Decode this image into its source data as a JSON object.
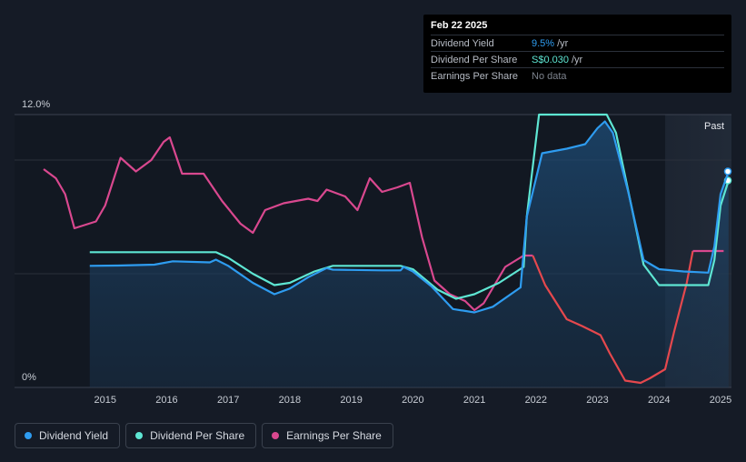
{
  "tooltip": {
    "date": "Feb 22 2025",
    "rows": [
      {
        "label": "Dividend Yield",
        "value": "9.5%",
        "unit": "/yr",
        "color": "#2e9cf0"
      },
      {
        "label": "Dividend Per Share",
        "value": "S$0.030",
        "unit": "/yr",
        "color": "#5ee6d3"
      },
      {
        "label": "Earnings Per Share",
        "value": "No data",
        "unit": "",
        "color": "#8a9099"
      }
    ]
  },
  "past_label": "Past",
  "legend": [
    {
      "label": "Dividend Yield",
      "color": "#2e9cf0"
    },
    {
      "label": "Dividend Per Share",
      "color": "#5ee6d3"
    },
    {
      "label": "Earnings Per Share",
      "color": "#d9488f"
    }
  ],
  "chart_data": {
    "type": "line",
    "y_ticks": [
      {
        "value": 12,
        "label": "12.0%"
      },
      {
        "value": 0,
        "label": "0%"
      }
    ],
    "ylim": [
      0,
      12
    ],
    "xlim": [
      2014.0,
      2025.15
    ],
    "x_ticks": [
      "2015",
      "2016",
      "2017",
      "2018",
      "2019",
      "2020",
      "2021",
      "2022",
      "2023",
      "2024",
      "2025"
    ],
    "grid": true,
    "forecast_region_start": 2024.1,
    "series": [
      {
        "name": "Dividend Yield",
        "color": "#2e9cf0",
        "area": true,
        "points": [
          [
            2014.75,
            5.35
          ],
          [
            2015.2,
            5.36
          ],
          [
            2015.8,
            5.4
          ],
          [
            2016.1,
            5.55
          ],
          [
            2016.7,
            5.5
          ],
          [
            2016.8,
            5.62
          ],
          [
            2017.0,
            5.35
          ],
          [
            2017.4,
            4.6
          ],
          [
            2017.75,
            4.1
          ],
          [
            2018.0,
            4.35
          ],
          [
            2018.3,
            4.85
          ],
          [
            2018.6,
            5.25
          ],
          [
            2018.7,
            5.18
          ],
          [
            2019.0,
            5.17
          ],
          [
            2019.5,
            5.15
          ],
          [
            2019.8,
            5.15
          ],
          [
            2019.85,
            5.3
          ],
          [
            2020.0,
            5.1
          ],
          [
            2020.3,
            4.45
          ],
          [
            2020.65,
            3.45
          ],
          [
            2021.0,
            3.3
          ],
          [
            2021.3,
            3.55
          ],
          [
            2021.75,
            4.4
          ],
          [
            2021.85,
            7.5
          ],
          [
            2022.1,
            10.3
          ],
          [
            2022.5,
            10.5
          ],
          [
            2022.8,
            10.7
          ],
          [
            2023.0,
            11.4
          ],
          [
            2023.12,
            11.7
          ],
          [
            2023.25,
            11.2
          ],
          [
            2023.5,
            8.6
          ],
          [
            2023.75,
            5.6
          ],
          [
            2024.0,
            5.2
          ],
          [
            2024.4,
            5.1
          ],
          [
            2024.8,
            5.05
          ],
          [
            2024.9,
            6.2
          ],
          [
            2025.0,
            8.5
          ],
          [
            2025.13,
            9.5
          ]
        ]
      },
      {
        "name": "Dividend Per Share",
        "color": "#5ee6d3",
        "area": false,
        "points": [
          [
            2014.75,
            5.95
          ],
          [
            2016.8,
            5.95
          ],
          [
            2017.0,
            5.7
          ],
          [
            2017.4,
            5.0
          ],
          [
            2017.75,
            4.5
          ],
          [
            2018.0,
            4.6
          ],
          [
            2018.4,
            5.1
          ],
          [
            2018.7,
            5.35
          ],
          [
            2019.8,
            5.35
          ],
          [
            2020.0,
            5.2
          ],
          [
            2020.4,
            4.3
          ],
          [
            2020.7,
            3.9
          ],
          [
            2021.0,
            4.1
          ],
          [
            2021.4,
            4.6
          ],
          [
            2021.8,
            5.3
          ],
          [
            2021.85,
            7.5
          ],
          [
            2022.05,
            12.0
          ],
          [
            2023.15,
            12.0
          ],
          [
            2023.3,
            11.2
          ],
          [
            2023.55,
            8.0
          ],
          [
            2023.75,
            5.4
          ],
          [
            2024.0,
            4.5
          ],
          [
            2024.8,
            4.5
          ],
          [
            2024.9,
            5.6
          ],
          [
            2025.0,
            8.0
          ],
          [
            2025.13,
            9.1
          ]
        ]
      },
      {
        "name": "Earnings Per Share",
        "color": "#d9488f",
        "color_negative": "#e5484d",
        "area": false,
        "points": [
          [
            2014.0,
            9.6
          ],
          [
            2014.2,
            9.2
          ],
          [
            2014.35,
            8.5
          ],
          [
            2014.5,
            7.0
          ],
          [
            2014.85,
            7.3
          ],
          [
            2015.0,
            8.0
          ],
          [
            2015.25,
            10.1
          ],
          [
            2015.5,
            9.5
          ],
          [
            2015.75,
            10.0
          ],
          [
            2015.95,
            10.8
          ],
          [
            2016.05,
            11.0
          ],
          [
            2016.25,
            9.4
          ],
          [
            2016.6,
            9.4
          ],
          [
            2016.9,
            8.2
          ],
          [
            2017.2,
            7.2
          ],
          [
            2017.4,
            6.8
          ],
          [
            2017.6,
            7.8
          ],
          [
            2017.9,
            8.1
          ],
          [
            2018.3,
            8.3
          ],
          [
            2018.45,
            8.2
          ],
          [
            2018.6,
            8.7
          ],
          [
            2018.9,
            8.4
          ],
          [
            2019.1,
            7.8
          ],
          [
            2019.3,
            9.2
          ],
          [
            2019.5,
            8.6
          ],
          [
            2019.75,
            8.8
          ],
          [
            2019.95,
            9.0
          ],
          [
            2020.15,
            6.6
          ],
          [
            2020.35,
            4.7
          ],
          [
            2020.6,
            4.1
          ],
          [
            2020.85,
            3.8
          ],
          [
            2021.0,
            3.4
          ],
          [
            2021.15,
            3.7
          ],
          [
            2021.5,
            5.3
          ],
          [
            2021.8,
            5.8
          ],
          [
            2021.95,
            5.8
          ],
          [
            2022.15,
            4.5
          ],
          [
            2022.5,
            3.0
          ],
          [
            2022.75,
            2.7
          ],
          [
            2023.05,
            2.3
          ],
          [
            2023.2,
            1.5
          ],
          [
            2023.45,
            0.3
          ],
          [
            2023.7,
            0.2
          ],
          [
            2023.85,
            0.4
          ],
          [
            2024.1,
            0.8
          ],
          [
            2024.25,
            2.5
          ],
          [
            2024.45,
            4.6
          ],
          [
            2024.55,
            6.0
          ],
          [
            2024.8,
            6.0
          ],
          [
            2025.05,
            6.0
          ]
        ]
      }
    ]
  }
}
